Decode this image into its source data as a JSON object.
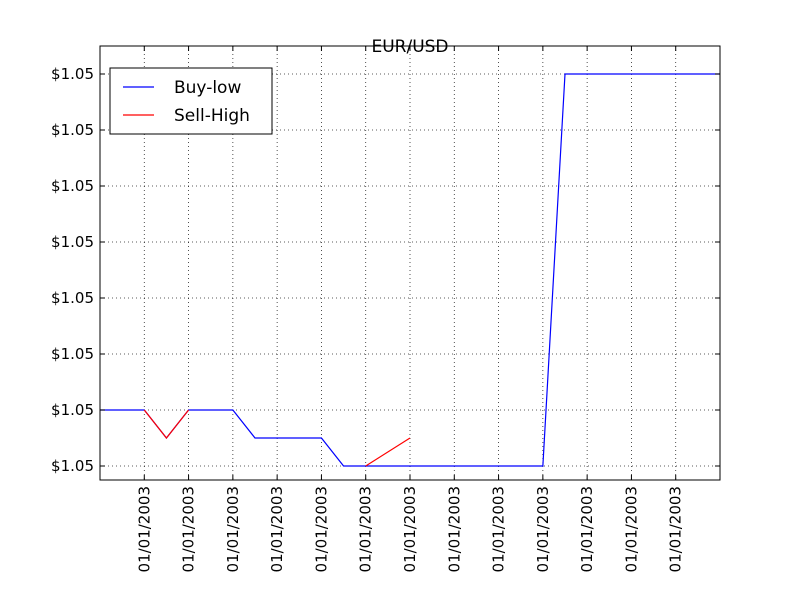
{
  "chart_data": {
    "type": "line",
    "title": "EUR/USD",
    "xlabel": "",
    "ylabel": "",
    "x_tick_labels": [
      "01/01/2003",
      "01/01/2003",
      "01/01/2003",
      "01/01/2003",
      "01/01/2003",
      "01/01/2003",
      "01/01/2003",
      "01/01/2003",
      "01/01/2003",
      "01/01/2003",
      "01/01/2003",
      "01/01/2003",
      "01/01/2003"
    ],
    "y_tick_labels": [
      "$1.05",
      "$1.05",
      "$1.05",
      "$1.05",
      "$1.05",
      "$1.05",
      "$1.05",
      "$1.05"
    ],
    "xlim": [
      0,
      28
    ],
    "ylim": [
      -0.5,
      15
    ],
    "grid": true,
    "legend_position": "top-left",
    "series": [
      {
        "name": "Buy-low",
        "color": "#0000ff",
        "x": [
          0,
          2,
          3,
          4,
          6,
          7,
          10,
          11,
          12,
          15,
          20,
          21,
          28
        ],
        "y": [
          2,
          2,
          1,
          2,
          2,
          1,
          1,
          0,
          0,
          0,
          0,
          14,
          14
        ]
      },
      {
        "name": "Sell-High",
        "color": "#ff0000",
        "segments": [
          {
            "x": [
              2,
              3,
              4
            ],
            "y": [
              2,
              1,
              2
            ]
          },
          {
            "x": [
              12,
              14
            ],
            "y": [
              0,
              1
            ]
          }
        ]
      }
    ]
  }
}
